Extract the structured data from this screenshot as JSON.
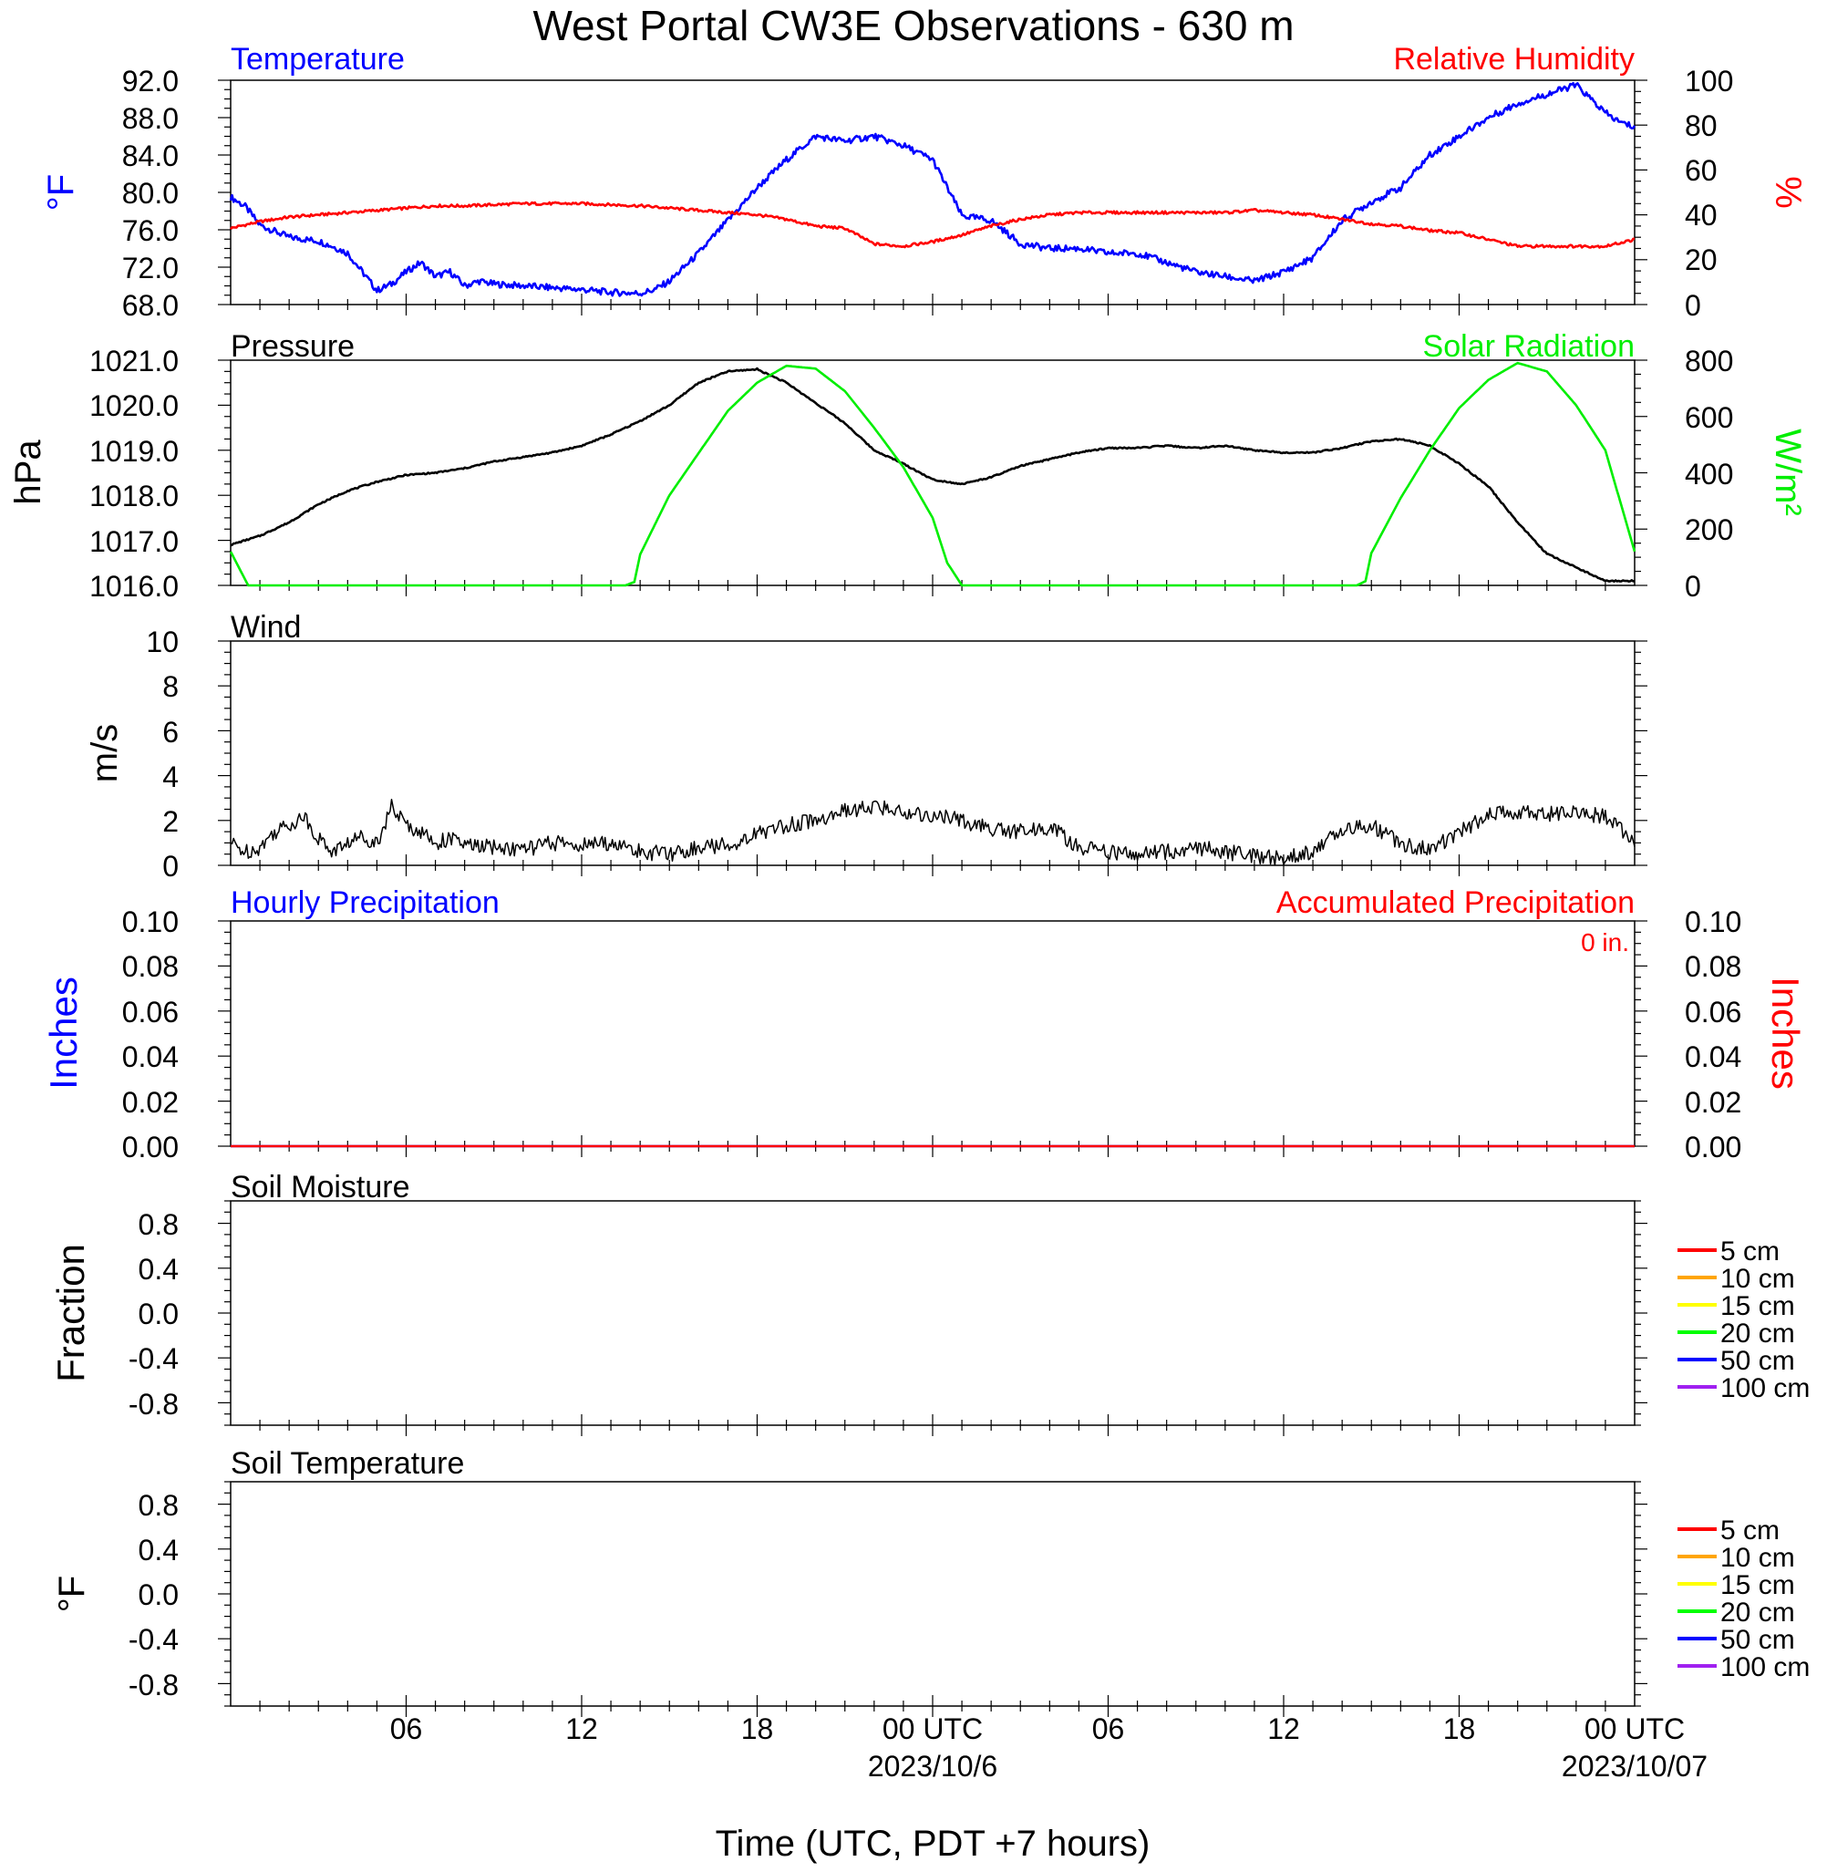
{
  "title": "West Portal CW3E Observations - 630 m",
  "x_axis": {
    "title": "Time (UTC, PDT +7 hours)",
    "ticks": [
      {
        "h": 6,
        "label": "06",
        "date": ""
      },
      {
        "h": 12,
        "label": "12",
        "date": ""
      },
      {
        "h": 18,
        "label": "18",
        "date": ""
      },
      {
        "h": 24,
        "label": "00 UTC",
        "date": "2023/10/6"
      },
      {
        "h": 30,
        "label": "06",
        "date": ""
      },
      {
        "h": 36,
        "label": "12",
        "date": ""
      },
      {
        "h": 42,
        "label": "18",
        "date": ""
      },
      {
        "h": 48,
        "label": "00 UTC",
        "date": "2023/10/07"
      }
    ]
  },
  "colors": {
    "temperature": "#0000ff",
    "humidity": "#ff0000",
    "pressure": "#000000",
    "solar": "#00ee00",
    "wind": "#000000",
    "barbs": "#ff0000",
    "hourly_precip": "#0000ff",
    "accum_precip": "#ff0000"
  },
  "panels": {
    "temp_rh": {
      "left_label": "Temperature",
      "right_label": "Relative Humidity",
      "left_unit": "°F",
      "right_unit": "%",
      "left_ticks": [
        "92.0",
        "88.0",
        "84.0",
        "80.0",
        "76.0",
        "72.0",
        "68.0"
      ],
      "right_ticks": [
        "100",
        "80",
        "60",
        "40",
        "20",
        "0"
      ]
    },
    "pressure_solar": {
      "left_label": "Pressure",
      "right_label": "Solar Radiation",
      "left_unit": "hPa",
      "right_unit": "W/m²",
      "left_ticks": [
        "1021.0",
        "1020.0",
        "1019.0",
        "1018.0",
        "1017.0",
        "1016.0"
      ],
      "right_ticks": [
        "800",
        "600",
        "400",
        "200",
        "0"
      ]
    },
    "wind": {
      "label": "Wind",
      "unit": "m/s",
      "ticks": [
        "10",
        "8",
        "6",
        "4",
        "2",
        "0"
      ]
    },
    "precip": {
      "left_label": "Hourly Precipitation",
      "right_label": "Accumulated Precipitation",
      "total": "0 in.",
      "left_unit": "Inches",
      "right_unit": "Inches",
      "ticks": [
        "0.10",
        "0.08",
        "0.06",
        "0.04",
        "0.02",
        "0.00"
      ]
    },
    "soil_moisture": {
      "label": "Soil Moisture",
      "unit": "Fraction",
      "ticks": [
        "0.8",
        "0.4",
        "0.0",
        "-0.4",
        "-0.8"
      ]
    },
    "soil_temp": {
      "label": "Soil Temperature",
      "unit": "°F",
      "ticks": [
        "0.8",
        "0.4",
        "0.0",
        "-0.4",
        "-0.8"
      ]
    }
  },
  "soil_legend": [
    {
      "label": "5 cm",
      "color": "#ff0000"
    },
    {
      "label": "10 cm",
      "color": "#ffa500"
    },
    {
      "label": "15 cm",
      "color": "#ffff00"
    },
    {
      "label": "20 cm",
      "color": "#00ff00"
    },
    {
      "label": "50 cm",
      "color": "#0000ff"
    },
    {
      "label": "100 cm",
      "color": "#a020f0"
    }
  ],
  "chart_data": [
    {
      "type": "line",
      "panel": "temp_rh",
      "x_unit": "hours since 2023-10-05 00 UTC",
      "xlim": [
        0,
        48
      ],
      "series": [
        {
          "name": "Temperature",
          "axis": "left",
          "ylim": [
            68,
            92
          ],
          "x": [
            0,
            0.5,
            1,
            2,
            3,
            3.5,
            4,
            4.5,
            5,
            5.5,
            6,
            6.5,
            7,
            7.5,
            8,
            8.5,
            9,
            10,
            11,
            12,
            13,
            14,
            14.5,
            15,
            16,
            17,
            18,
            19,
            20,
            21,
            22,
            23,
            24,
            25,
            26,
            27,
            28,
            29,
            30,
            31,
            32,
            33,
            34,
            35,
            36,
            37,
            38,
            39,
            40,
            41,
            42,
            43,
            44,
            45,
            46,
            47,
            47.5,
            48
          ],
          "values": [
            79.5,
            78.5,
            76.5,
            75.2,
            74.8,
            74.2,
            73.5,
            71.5,
            69.5,
            70.2,
            71.5,
            72.5,
            71.0,
            71.5,
            70.0,
            70.5,
            70.2,
            70.0,
            69.8,
            69.6,
            69.3,
            69.2,
            69.6,
            70.5,
            73.5,
            77.0,
            80.5,
            83.5,
            86.0,
            85.5,
            86.0,
            85.0,
            83.5,
            77.5,
            77.0,
            74.5,
            74.0,
            74.0,
            73.5,
            73.5,
            72.5,
            71.5,
            71.0,
            70.5,
            71.5,
            73.0,
            77.0,
            79.0,
            80.5,
            84.0,
            86.0,
            88.0,
            89.5,
            90.5,
            91.5,
            88.5,
            87.5,
            87.0
          ]
        },
        {
          "name": "Relative Humidity",
          "axis": "right",
          "ylim": [
            0,
            100
          ],
          "x": [
            0,
            1,
            2,
            3,
            4,
            5,
            6,
            7,
            8,
            10,
            12,
            14,
            15,
            16,
            17,
            18,
            19,
            20,
            21,
            22,
            23,
            24,
            25,
            26,
            27,
            28,
            29,
            30,
            31,
            32,
            33,
            34,
            35,
            36,
            37,
            38,
            39,
            40,
            41,
            42,
            43,
            44,
            45,
            46,
            47,
            48
          ],
          "values": [
            34,
            37,
            39,
            40,
            41,
            42,
            43,
            44,
            44,
            45,
            45,
            44,
            43,
            42,
            41,
            40,
            38,
            35,
            34,
            27,
            26,
            28,
            31,
            35,
            38,
            40,
            41,
            41,
            41,
            41,
            41,
            41,
            42,
            41,
            40,
            38,
            36,
            35,
            33,
            32,
            29,
            26,
            26,
            26,
            26,
            29
          ]
        }
      ]
    },
    {
      "type": "line",
      "panel": "pressure_solar",
      "x_unit": "hours since 2023-10-05 00 UTC",
      "xlim": [
        0,
        48
      ],
      "series": [
        {
          "name": "Pressure",
          "axis": "left",
          "ylim": [
            1016.0,
            1021.0
          ],
          "x": [
            0,
            1,
            2,
            3,
            4,
            5,
            6,
            7,
            8,
            9,
            10,
            11,
            12,
            13,
            14,
            15,
            16,
            17,
            18,
            19,
            20,
            21,
            22,
            23,
            24,
            25,
            26,
            27,
            28,
            29,
            30,
            31,
            32,
            33,
            34,
            35,
            36,
            37,
            38,
            39,
            40,
            41,
            42,
            43,
            44,
            45,
            46,
            47,
            48
          ],
          "values": [
            1016.9,
            1017.1,
            1017.4,
            1017.8,
            1018.1,
            1018.3,
            1018.45,
            1018.5,
            1018.6,
            1018.75,
            1018.85,
            1018.95,
            1019.1,
            1019.35,
            1019.65,
            1020.0,
            1020.5,
            1020.75,
            1020.8,
            1020.5,
            1020.05,
            1019.6,
            1019.0,
            1018.7,
            1018.35,
            1018.25,
            1018.4,
            1018.65,
            1018.8,
            1018.95,
            1019.05,
            1019.05,
            1019.1,
            1019.05,
            1019.1,
            1019.0,
            1018.95,
            1018.95,
            1019.05,
            1019.2,
            1019.25,
            1019.1,
            1018.7,
            1018.2,
            1017.4,
            1016.7,
            1016.4,
            1016.1,
            1016.1
          ]
        },
        {
          "name": "Solar Radiation",
          "axis": "right",
          "ylim": [
            0,
            800
          ],
          "x": [
            0,
            0.6,
            1,
            13.5,
            13.8,
            14,
            15,
            16,
            17,
            18,
            19,
            20,
            21,
            22,
            23,
            24,
            24.5,
            25,
            38.5,
            38.8,
            39,
            40,
            41,
            42,
            43,
            44,
            45,
            46,
            47,
            48
          ],
          "values": [
            120,
            0,
            0,
            0,
            12,
            110,
            320,
            470,
            620,
            720,
            780,
            770,
            690,
            560,
            420,
            240,
            80,
            0,
            0,
            15,
            115,
            310,
            480,
            630,
            730,
            790,
            760,
            640,
            480,
            120
          ]
        }
      ]
    },
    {
      "type": "line",
      "panel": "wind",
      "x_unit": "hours since 2023-10-05 00 UTC",
      "xlim": [
        0,
        48
      ],
      "series": [
        {
          "name": "Wind",
          "axis": "left",
          "ylim": [
            0,
            10
          ],
          "x": [
            0,
            0.5,
            1,
            1.5,
            2,
            2.5,
            3,
            3.5,
            4,
            4.5,
            5,
            5.5,
            6,
            6.5,
            7,
            7.5,
            8,
            9,
            10,
            11,
            12,
            13,
            14,
            15,
            16,
            17,
            18,
            19,
            20,
            21,
            22,
            23,
            24,
            25,
            26,
            27,
            28,
            29,
            30,
            31,
            32,
            33,
            34,
            35,
            36,
            37,
            38,
            39,
            40,
            41,
            42,
            43,
            44,
            45,
            46,
            47,
            47.5,
            48
          ],
          "values": [
            1.0,
            0.6,
            0.8,
            1.5,
            1.8,
            2.2,
            1.2,
            0.6,
            1.0,
            1.3,
            1.0,
            2.6,
            1.8,
            1.5,
            1.0,
            1.2,
            0.9,
            0.8,
            0.7,
            1.0,
            0.9,
            1.0,
            0.6,
            0.5,
            0.8,
            0.9,
            1.4,
            1.8,
            2.0,
            2.4,
            2.6,
            2.4,
            2.2,
            2.0,
            1.6,
            1.5,
            1.7,
            0.8,
            0.6,
            0.5,
            0.6,
            0.8,
            0.6,
            0.4,
            0.3,
            0.6,
            1.6,
            1.8,
            1.0,
            0.7,
            1.5,
            2.2,
            2.4,
            2.3,
            2.3,
            2.2,
            1.6,
            1.1
          ]
        }
      ]
    },
    {
      "type": "line",
      "panel": "precip",
      "x_unit": "hours since 2023-10-05 00 UTC",
      "xlim": [
        0,
        48
      ],
      "series": [
        {
          "name": "Hourly Precipitation",
          "axis": "left",
          "ylim": [
            0,
            0.1
          ],
          "x": [
            0,
            48
          ],
          "values": [
            0,
            0
          ]
        },
        {
          "name": "Accumulated Precipitation",
          "axis": "right",
          "ylim": [
            0,
            0.1
          ],
          "x": [
            0,
            48
          ],
          "values": [
            0,
            0
          ]
        }
      ]
    }
  ]
}
